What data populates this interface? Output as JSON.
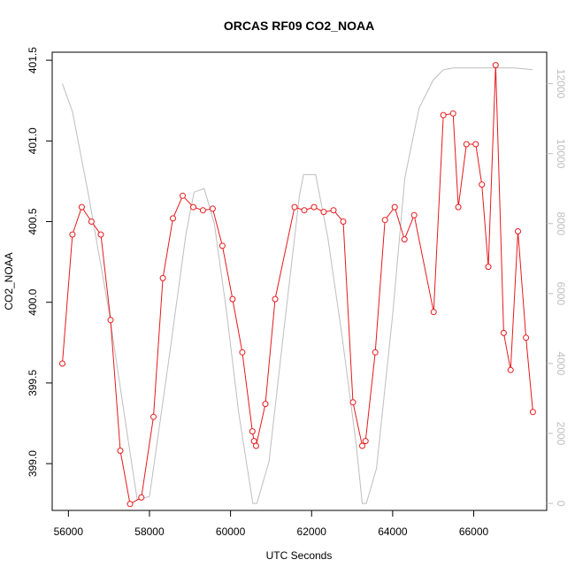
{
  "chart_data": {
    "type": "line",
    "title": "ORCAS RF09 CO2_NOAA",
    "xlabel": "UTC Seconds",
    "ylabel": "CO2_NOAA",
    "xlim": [
      55600,
      67800
    ],
    "ylim": [
      398.71,
      401.55
    ],
    "y2lim": [
      -200,
      12900
    ],
    "xticks": [
      56000,
      58000,
      60000,
      62000,
      64000,
      66000
    ],
    "yticks": [
      399.0,
      399.5,
      400.0,
      400.5,
      401.0,
      401.5
    ],
    "ytick_labels": [
      "399.0",
      "399.5",
      "400.0",
      "400.5",
      "401.0",
      "401.5"
    ],
    "y2ticks": [
      0,
      2000,
      4000,
      6000,
      8000,
      10000,
      12000
    ],
    "colors": {
      "primary": "#e41a1c",
      "secondary": "#bebebe"
    },
    "series": [
      {
        "axis": "left",
        "marker": "open-circle",
        "x": [
          55850,
          56100,
          56330,
          56570,
          56800,
          57040,
          57280,
          57520,
          57800,
          58100,
          58330,
          58580,
          58820,
          59080,
          59320,
          59560,
          59800,
          60050,
          60290,
          60540,
          60580,
          60630,
          60860,
          61100,
          61580,
          61820,
          62060,
          62300,
          62540,
          62780,
          63020,
          63250,
          63330,
          63570,
          63810,
          64050,
          64290,
          64530,
          65010,
          65250,
          65490,
          65620,
          65820,
          66050,
          66200,
          66360,
          66540,
          66740,
          66910,
          67090,
          67290,
          67460
        ],
        "y": [
          399.62,
          400.42,
          400.59,
          400.5,
          400.42,
          399.89,
          399.08,
          398.75,
          398.79,
          399.29,
          400.15,
          400.52,
          400.66,
          400.59,
          400.57,
          400.58,
          400.35,
          400.02,
          399.69,
          399.2,
          399.14,
          399.11,
          399.37,
          400.02,
          400.59,
          400.57,
          400.59,
          400.56,
          400.57,
          400.5,
          399.38,
          399.11,
          399.14,
          399.69,
          400.51,
          400.59,
          400.39,
          400.54,
          399.94,
          401.16,
          401.17,
          400.59,
          400.98,
          400.98,
          400.73,
          400.22,
          401.47,
          399.81,
          399.58,
          400.44,
          399.78,
          399.32
        ]
      },
      {
        "axis": "right",
        "x": [
          55850,
          56100,
          56500,
          57000,
          57500,
          57700,
          58000,
          58500,
          58900,
          59100,
          59350,
          59600,
          59900,
          60200,
          60550,
          60650,
          60950,
          61300,
          61700,
          61800,
          62100,
          62400,
          62750,
          63100,
          63250,
          63350,
          63600,
          64000,
          64300,
          64650,
          65000,
          65250,
          65500,
          66000,
          66500,
          67000,
          67450
        ],
        "y": [
          12000,
          11200,
          8800,
          5500,
          1600,
          100,
          200,
          4300,
          7700,
          8900,
          9000,
          8000,
          5500,
          2600,
          0,
          0,
          1200,
          4800,
          8800,
          9400,
          9400,
          7600,
          4800,
          1700,
          0,
          0,
          1000,
          5400,
          9300,
          11300,
          12100,
          12400,
          12450,
          12450,
          12450,
          12450,
          12400
        ]
      }
    ]
  }
}
